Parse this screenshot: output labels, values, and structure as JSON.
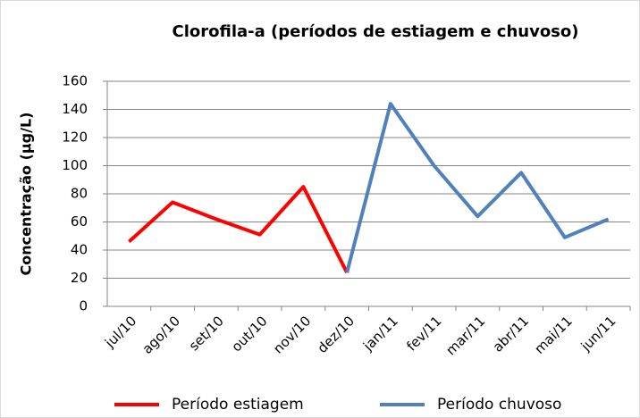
{
  "chart_data": {
    "type": "line",
    "title": "Clorofila-a (períodos de estiagem e chuvoso)",
    "y_label": "Concentração (µg/L)",
    "categories": [
      "jul/10",
      "ago/10",
      "set/10",
      "out/10",
      "nov/10",
      "dez/10",
      "jan/11",
      "fev/11",
      "mar/11",
      "abr/11",
      "mai/11",
      "jun/11"
    ],
    "series": [
      {
        "name": "Período estiagem",
        "color": "#ff0000",
        "values": [
          46,
          74,
          62,
          51,
          85,
          24,
          null,
          null,
          null,
          null,
          null,
          null
        ]
      },
      {
        "name": "Período chuvoso",
        "color": "#4f81bd",
        "values": [
          null,
          null,
          null,
          null,
          null,
          24,
          144,
          100,
          64,
          95,
          49,
          62
        ]
      }
    ],
    "ylim": [
      0,
      160
    ],
    "yticks": [
      0,
      20,
      40,
      60,
      80,
      100,
      120,
      140,
      160
    ],
    "grid": true
  }
}
